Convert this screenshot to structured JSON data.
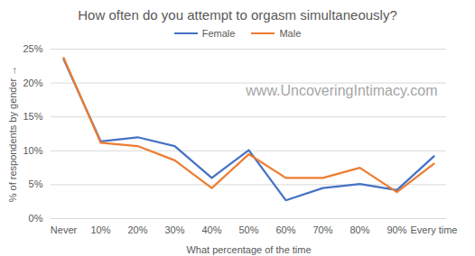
{
  "chart_data": {
    "type": "line",
    "title": "How often do you attempt to orgasm simultaneously?",
    "x_label": "What percentage of the time",
    "y_label": "% of respondents by gender",
    "categories": [
      "Never",
      "10%",
      "20%",
      "30%",
      "40%",
      "50%",
      "60%",
      "70%",
      "80%",
      "90%",
      "Every time"
    ],
    "series": [
      {
        "name": "Female",
        "color": "#4472c4",
        "values": [
          23.5,
          11.4,
          12.0,
          10.7,
          6.0,
          10.1,
          2.7,
          4.5,
          5.1,
          4.2,
          9.2
        ]
      },
      {
        "name": "Male",
        "color": "#ed7d31",
        "values": [
          23.7,
          11.2,
          10.7,
          8.6,
          4.5,
          9.5,
          6.0,
          6.0,
          7.5,
          3.9,
          8.1
        ]
      }
    ],
    "ylim": [
      0,
      25
    ],
    "yticks": [
      {
        "value": 0,
        "label": "0%"
      },
      {
        "value": 5,
        "label": "5%"
      },
      {
        "value": 10,
        "label": "10%"
      },
      {
        "value": 15,
        "label": "15%"
      },
      {
        "value": 20,
        "label": "20%"
      },
      {
        "value": 25,
        "label": "25%"
      }
    ],
    "grid": true,
    "legend": "top",
    "annotations": [
      {
        "text": "www.UncoveringIntimacy.com"
      }
    ]
  }
}
